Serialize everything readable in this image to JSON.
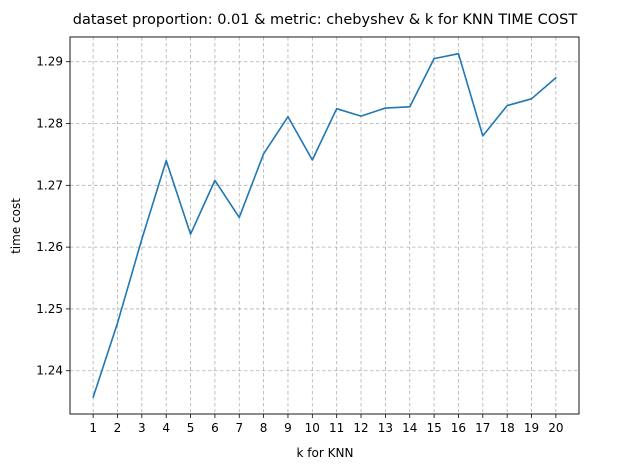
{
  "chart_data": {
    "type": "line",
    "title": "dataset proportion: 0.01 & metric: chebyshev & k for KNN TIME COST",
    "xlabel": "k for KNN",
    "ylabel": "time cost",
    "x": [
      1,
      2,
      3,
      4,
      5,
      6,
      7,
      8,
      9,
      10,
      11,
      12,
      13,
      14,
      15,
      16,
      17,
      18,
      19,
      20
    ],
    "series": [
      {
        "values": [
          1.2357,
          1.2477,
          1.2613,
          1.274,
          1.2621,
          1.2708,
          1.2648,
          1.2751,
          1.2811,
          1.2741,
          1.2824,
          1.2812,
          1.2825,
          1.2827,
          1.2905,
          1.2913,
          1.278,
          1.2829,
          1.284,
          1.2874
        ],
        "color": "#1f77b4"
      }
    ],
    "xticks": [
      "1",
      "2",
      "3",
      "4",
      "5",
      "6",
      "7",
      "8",
      "9",
      "10",
      "11",
      "12",
      "13",
      "14",
      "15",
      "16",
      "17",
      "18",
      "19",
      "20"
    ],
    "yticks": [
      1.24,
      1.25,
      1.26,
      1.27,
      1.28,
      1.29
    ],
    "ytick_labels": [
      "1.24",
      "1.25",
      "1.26",
      "1.27",
      "1.28",
      "1.29"
    ],
    "xlim": [
      0.05,
      20.95
    ],
    "ylim": [
      1.233,
      1.294
    ],
    "grid": true
  }
}
